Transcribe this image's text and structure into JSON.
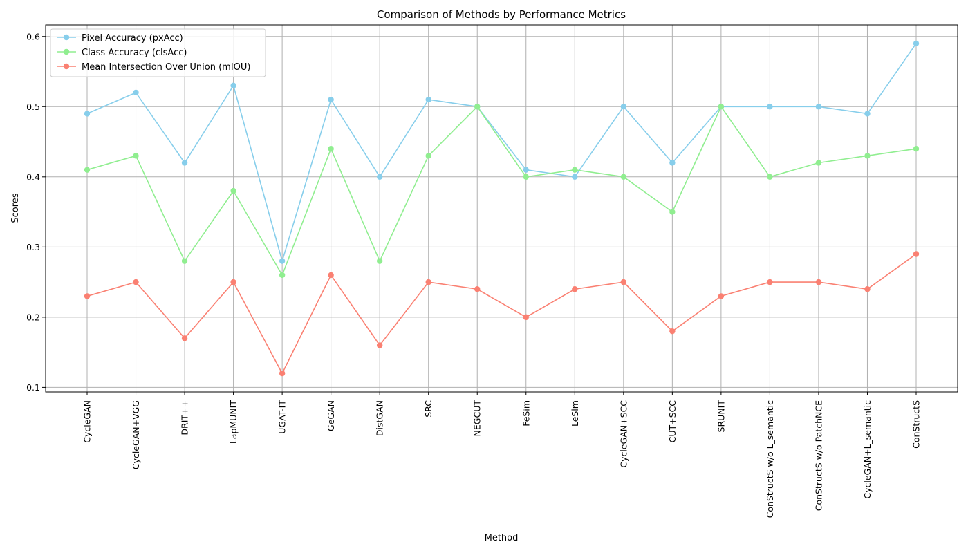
{
  "chart_data": {
    "type": "line",
    "title": "Comparison of Methods by Performance Metrics",
    "xlabel": "Method",
    "ylabel": "Scores",
    "categories": [
      "CycleGAN",
      "CycleGAN+VGG",
      "DRIT++",
      "LapMUNIT",
      "UGAT-IT",
      "GeGAN",
      "DistGAN",
      "SRC",
      "NEGCUT",
      "FeSim",
      "LeSim",
      "CycleGAN+SCC",
      "CUT+SCC",
      "SRUNIT",
      "ConStructS w/o L_semantic",
      "ConStructS w/o PatchNCE",
      "CycleGAN+L_semantic",
      "ConStructS"
    ],
    "series": [
      {
        "name": "Pixel Accuracy (pxAcc)",
        "color": "#87ceeb",
        "values": [
          0.49,
          0.52,
          0.42,
          0.53,
          0.28,
          0.51,
          0.4,
          0.51,
          0.5,
          0.41,
          0.4,
          0.5,
          0.42,
          0.5,
          0.5,
          0.5,
          0.49,
          0.59
        ]
      },
      {
        "name": "Class Accuracy (clsAcc)",
        "color": "#90ee90",
        "values": [
          0.41,
          0.43,
          0.28,
          0.38,
          0.26,
          0.44,
          0.28,
          0.43,
          0.5,
          0.4,
          0.41,
          0.4,
          0.35,
          0.5,
          0.4,
          0.42,
          0.43,
          0.44
        ]
      },
      {
        "name": "Mean Intersection Over Union (mIOU)",
        "color": "#fa8072",
        "values": [
          0.23,
          0.25,
          0.17,
          0.25,
          0.12,
          0.26,
          0.16,
          0.25,
          0.24,
          0.2,
          0.24,
          0.25,
          0.18,
          0.23,
          0.25,
          0.25,
          0.24,
          0.29
        ]
      }
    ],
    "ylim": [
      0.0935,
      0.6165
    ],
    "yticks": [
      "0.1",
      "0.2",
      "0.3",
      "0.4",
      "0.5",
      "0.6"
    ],
    "ytick_values": [
      0.1,
      0.2,
      0.3,
      0.4,
      0.5,
      0.6
    ],
    "grid": true,
    "legend_position": "top-left",
    "marker": "circle"
  }
}
